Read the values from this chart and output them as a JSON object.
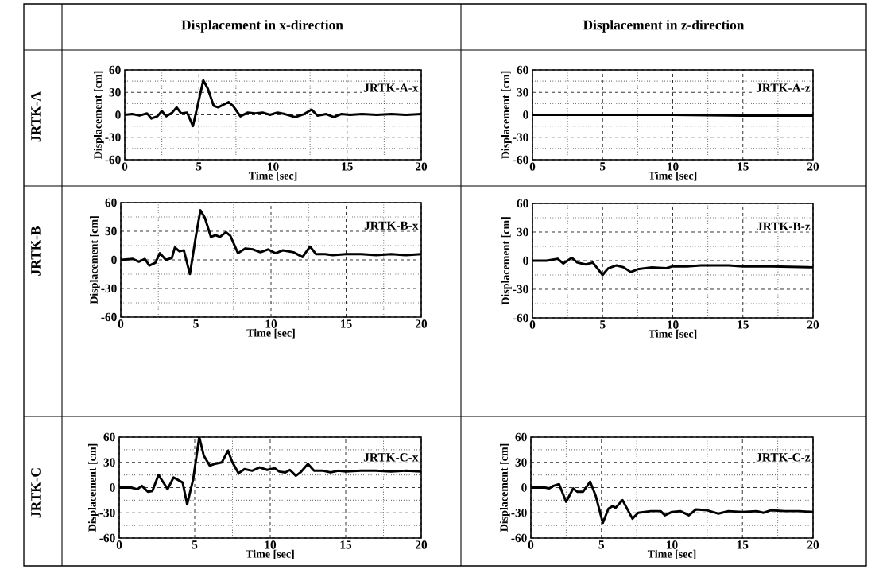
{
  "chart_data": [
    {
      "type": "other",
      "annotations": [
        "Displacement in x-direction",
        "Displacement in z-direction",
        "JRTK-A",
        "JRTK-B",
        "JRTK-C"
      ]
    },
    {
      "type": "line",
      "color": "#000000",
      "xlabel": "Time [sec]",
      "ylabel": "Displacement [cm]",
      "annotations": [
        "JRTK-A-x"
      ],
      "xlim": [
        0,
        20
      ],
      "ylim": [
        -60,
        60
      ],
      "xticks": [
        0,
        {
          "value": 2.5,
          "label": null
        },
        5,
        {
          "value": 7.5,
          "label": null
        },
        10,
        {
          "value": 12.5,
          "label": null
        },
        15,
        {
          "value": 17.5,
          "label": null
        },
        20
      ],
      "yticks": [
        -60,
        {
          "value": -45,
          "label": null
        },
        -30,
        {
          "value": -15,
          "label": null
        },
        0,
        {
          "value": 15,
          "label": null
        },
        30,
        {
          "value": 45,
          "label": null
        },
        60
      ],
      "grid": true,
      "x": [
        0,
        0.5,
        1,
        1.5,
        1.8,
        2.2,
        2.5,
        2.8,
        3.2,
        3.5,
        3.8,
        4.2,
        4.6,
        5.0,
        5.3,
        5.6,
        6.0,
        6.3,
        6.6,
        7.0,
        7.3,
        7.8,
        8.3,
        8.8,
        9.3,
        9.8,
        10.3,
        10.8,
        11.5,
        12.1,
        12.6,
        13.0,
        13.6,
        14.1,
        14.6,
        15.2,
        16,
        17,
        18,
        19,
        20
      ],
      "values": [
        0,
        1,
        -1,
        2,
        -5,
        -2,
        5,
        -2,
        3,
        10,
        2,
        3,
        -15,
        20,
        46,
        35,
        12,
        10,
        13,
        17,
        12,
        -2,
        3,
        2,
        3,
        0,
        3,
        1,
        -3,
        1,
        7,
        -1,
        1,
        -3,
        1,
        0,
        1,
        0,
        1,
        0,
        1
      ]
    },
    {
      "type": "line",
      "color": "#000000",
      "xlabel": "Time [sec]",
      "ylabel": "Displacement [cm]",
      "annotations": [
        "JRTK-A-z"
      ],
      "xlim": [
        0,
        20
      ],
      "ylim": [
        -60,
        60
      ],
      "xticks": [
        0,
        {
          "value": 2.5,
          "label": null
        },
        5,
        {
          "value": 7.5,
          "label": null
        },
        10,
        {
          "value": 12.5,
          "label": null
        },
        15,
        {
          "value": 17.5,
          "label": null
        },
        20
      ],
      "yticks": [
        -60,
        {
          "value": -45,
          "label": null
        },
        -30,
        {
          "value": -15,
          "label": null
        },
        0,
        {
          "value": 15,
          "label": null
        },
        30,
        {
          "value": 45,
          "label": null
        },
        60
      ],
      "grid": true,
      "x": [
        0,
        5,
        10,
        15,
        20
      ],
      "values": [
        0,
        0,
        0,
        -1,
        -1
      ]
    },
    {
      "type": "line",
      "color": "#000000",
      "xlabel": "Time [sec]",
      "ylabel": "Displacement [cm]",
      "annotations": [
        "JRTK-B-x"
      ],
      "xlim": [
        0,
        20
      ],
      "ylim": [
        -60,
        60
      ],
      "xticks": [
        0,
        {
          "value": 2.5,
          "label": null
        },
        5,
        {
          "value": 7.5,
          "label": null
        },
        10,
        {
          "value": 12.5,
          "label": null
        },
        15,
        {
          "value": 17.5,
          "label": null
        },
        20
      ],
      "yticks": [
        -60,
        {
          "value": -45,
          "label": null
        },
        -30,
        {
          "value": -15,
          "label": null
        },
        0,
        {
          "value": 15,
          "label": null
        },
        30,
        {
          "value": 45,
          "label": null
        },
        60
      ],
      "grid": true,
      "x": [
        0,
        0.8,
        1.2,
        1.6,
        1.9,
        2.3,
        2.6,
        3.0,
        3.4,
        3.6,
        3.9,
        4.2,
        4.6,
        5.0,
        5.3,
        5.6,
        6.0,
        6.3,
        6.6,
        7.0,
        7.3,
        7.8,
        8.3,
        8.8,
        9.3,
        9.8,
        10.3,
        10.8,
        11.5,
        12.1,
        12.6,
        13.0,
        13.6,
        14.1,
        15,
        16,
        17,
        18,
        19,
        20
      ],
      "values": [
        0,
        1,
        -2,
        1,
        -6,
        -3,
        7,
        0,
        2,
        13,
        9,
        10,
        -15,
        25,
        52,
        44,
        24,
        26,
        24,
        29,
        25,
        7,
        12,
        11,
        8,
        11,
        7,
        10,
        8,
        3,
        14,
        6,
        6,
        5,
        6,
        6,
        5,
        6,
        5,
        6
      ]
    },
    {
      "type": "line",
      "color": "#000000",
      "xlabel": "Time [sec]",
      "ylabel": "Displacement [cm]",
      "annotations": [
        "JRTK-B-z"
      ],
      "xlim": [
        0,
        20
      ],
      "ylim": [
        -60,
        60
      ],
      "xticks": [
        0,
        {
          "value": 2.5,
          "label": null
        },
        5,
        {
          "value": 7.5,
          "label": null
        },
        10,
        {
          "value": 12.5,
          "label": null
        },
        15,
        {
          "value": 17.5,
          "label": null
        },
        20
      ],
      "yticks": [
        -60,
        {
          "value": -45,
          "label": null
        },
        -30,
        {
          "value": -15,
          "label": null
        },
        0,
        {
          "value": 15,
          "label": null
        },
        30,
        {
          "value": 45,
          "label": null
        },
        60
      ],
      "grid": true,
      "x": [
        0,
        1,
        1.8,
        2.2,
        2.8,
        3.2,
        3.8,
        4.3,
        5.0,
        5.4,
        6.0,
        6.5,
        7.0,
        7.5,
        8.5,
        9.5,
        10,
        11,
        12,
        13,
        14,
        15,
        17,
        20
      ],
      "values": [
        0,
        0,
        2,
        -3,
        3,
        -2,
        -4,
        -2,
        -15,
        -8,
        -5,
        -7,
        -12,
        -9,
        -7,
        -8,
        -6,
        -6,
        -5,
        -5,
        -5,
        -6,
        -6,
        -7
      ]
    },
    {
      "type": "line",
      "color": "#000000",
      "xlabel": "Time [sec]",
      "ylabel": "Displacement [cm]",
      "annotations": [
        "JRTK-C-x"
      ],
      "xlim": [
        0,
        20
      ],
      "ylim": [
        -60,
        60
      ],
      "xticks": [
        0,
        {
          "value": 2.5,
          "label": null
        },
        5,
        {
          "value": 7.5,
          "label": null
        },
        10,
        {
          "value": 12.5,
          "label": null
        },
        15,
        {
          "value": 17.5,
          "label": null
        },
        20
      ],
      "yticks": [
        -60,
        {
          "value": -45,
          "label": null
        },
        -30,
        {
          "value": -15,
          "label": null
        },
        0,
        {
          "value": 15,
          "label": null
        },
        30,
        {
          "value": 45,
          "label": null
        },
        60
      ],
      "grid": true,
      "x": [
        0,
        0.8,
        1.2,
        1.5,
        1.9,
        2.2,
        2.6,
        3.0,
        3.2,
        3.6,
        4.0,
        4.2,
        4.5,
        4.9,
        5.3,
        5.6,
        6.0,
        6.3,
        6.8,
        7.2,
        7.5,
        7.9,
        8.3,
        8.8,
        9.3,
        9.8,
        10.3,
        10.6,
        11.0,
        11.3,
        11.7,
        12.0,
        12.5,
        12.9,
        13.5,
        14,
        14.5,
        15,
        16,
        17,
        18,
        19,
        20
      ],
      "values": [
        0,
        0,
        -2,
        2,
        -5,
        -4,
        15,
        4,
        -2,
        12,
        8,
        6,
        -20,
        10,
        60,
        38,
        26,
        28,
        30,
        44,
        30,
        17,
        22,
        20,
        24,
        21,
        23,
        19,
        18,
        21,
        14,
        18,
        28,
        20,
        20,
        18,
        20,
        19,
        20,
        20,
        19,
        20,
        19
      ]
    },
    {
      "type": "line",
      "color": "#000000",
      "xlabel": "Time [sec]",
      "ylabel": "Displacement [cm]",
      "annotations": [
        "JRTK-C-z"
      ],
      "xlim": [
        0,
        20
      ],
      "ylim": [
        -60,
        60
      ],
      "xticks": [
        0,
        {
          "value": 2.5,
          "label": null
        },
        5,
        {
          "value": 7.5,
          "label": null
        },
        10,
        {
          "value": 12.5,
          "label": null
        },
        15,
        {
          "value": 17.5,
          "label": null
        },
        20
      ],
      "yticks": [
        -60,
        {
          "value": -45,
          "label": null
        },
        -30,
        {
          "value": -15,
          "label": null
        },
        0,
        {
          "value": 15,
          "label": null
        },
        30,
        {
          "value": 45,
          "label": null
        },
        60
      ],
      "grid": true,
      "x": [
        0,
        1,
        1.3,
        1.6,
        2.0,
        2.5,
        3.0,
        3.3,
        3.7,
        4.2,
        4.6,
        5.1,
        5.5,
        5.8,
        6.0,
        6.5,
        7.2,
        7.6,
        8.5,
        9.2,
        9.5,
        10,
        10.6,
        11.2,
        11.7,
        12.5,
        13.3,
        14,
        15,
        16,
        16.5,
        17,
        18,
        19,
        20
      ],
      "values": [
        0,
        0,
        -1,
        2,
        4,
        -17,
        -1,
        -5,
        -5,
        7,
        -10,
        -42,
        -25,
        -22,
        -24,
        -15,
        -37,
        -30,
        -28,
        -28,
        -33,
        -29,
        -28,
        -33,
        -26,
        -27,
        -31,
        -28,
        -29,
        -28,
        -30,
        -27,
        -28,
        -28,
        -29
      ]
    }
  ]
}
